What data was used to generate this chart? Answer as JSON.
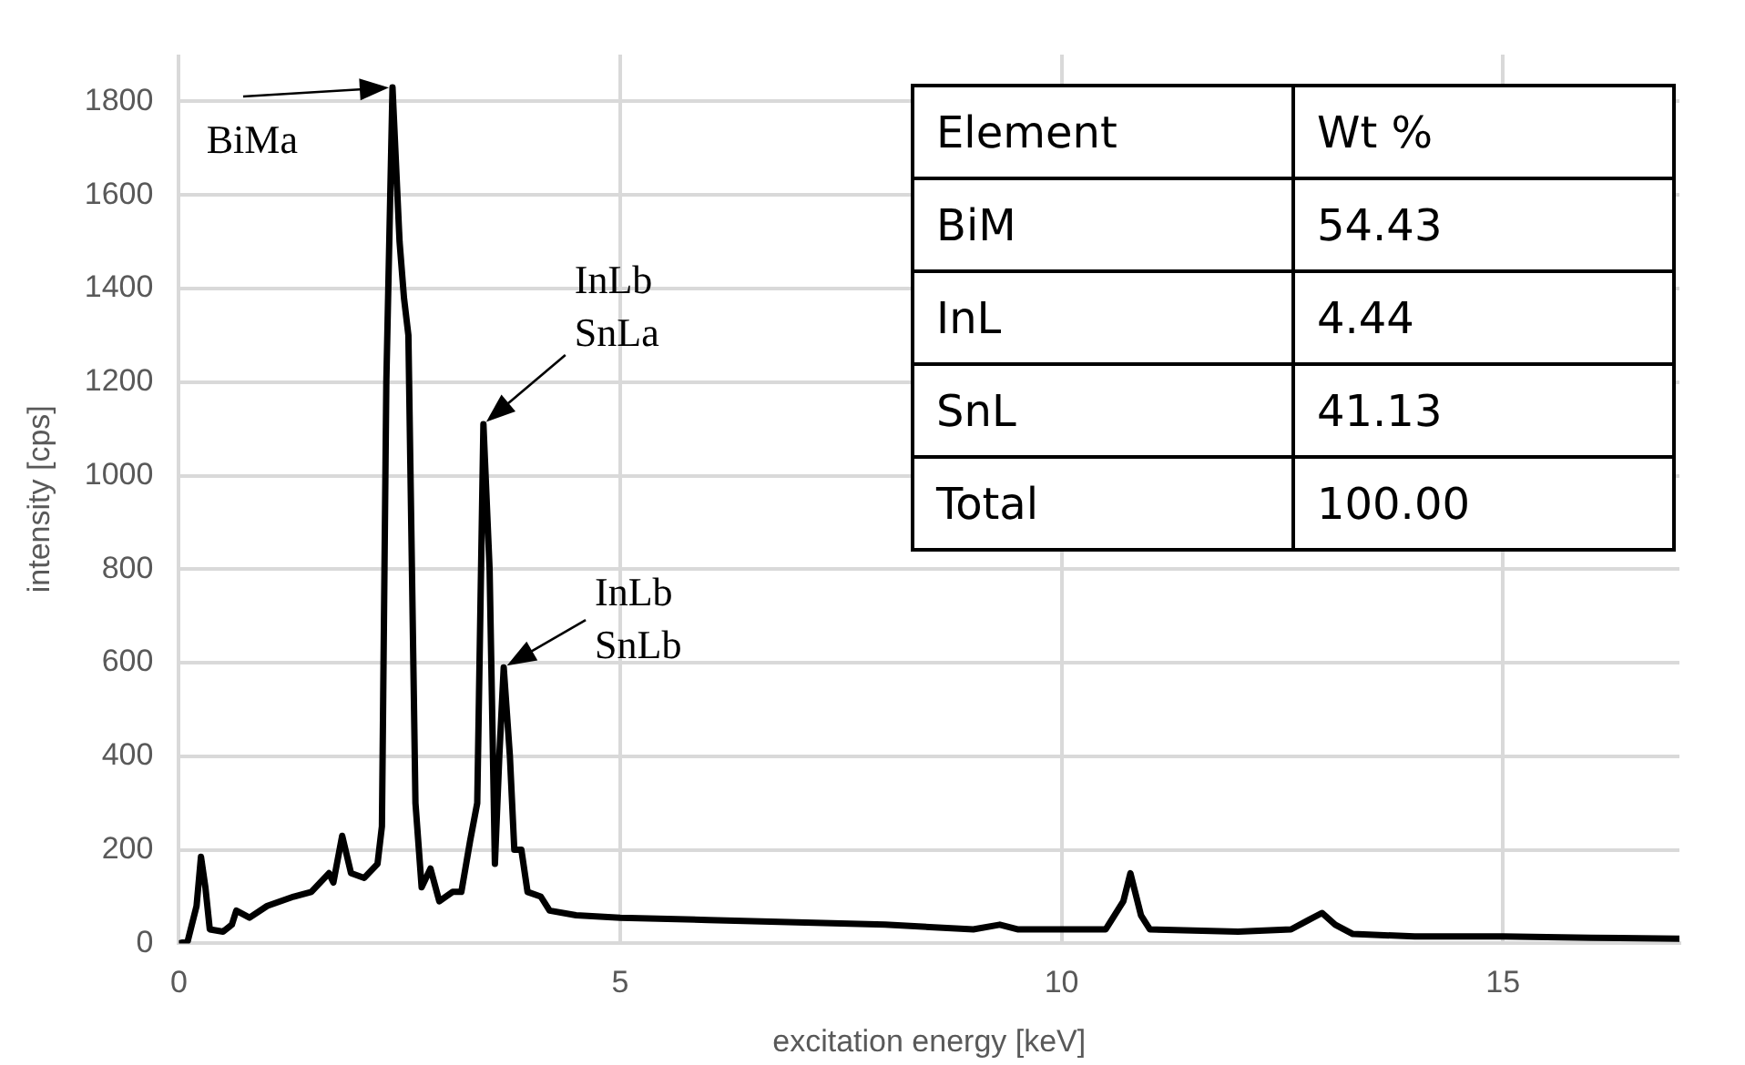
{
  "chart_data": {
    "type": "line",
    "xlabel": "excitation energy [keV]",
    "ylabel": "intensity [cps]",
    "xlim": [
      0,
      17
    ],
    "xticks": [
      0,
      5,
      10,
      15
    ],
    "ylim": [
      0,
      1900
    ],
    "yticks": [
      0,
      200,
      400,
      600,
      800,
      1000,
      1200,
      1400,
      1600,
      1800
    ],
    "grid": true,
    "legend": false,
    "marker": "none",
    "line_style": "solid",
    "series": [
      {
        "color": "#000000",
        "x": [
          0,
          0.1,
          0.2,
          0.25,
          0.3,
          0.35,
          0.5,
          0.6,
          0.65,
          0.8,
          1.0,
          1.3,
          1.5,
          1.7,
          1.75,
          1.85,
          1.95,
          2.1,
          2.25,
          2.3,
          2.35,
          2.42,
          2.5,
          2.55,
          2.6,
          2.68,
          2.75,
          2.85,
          2.95,
          3.1,
          3.2,
          3.3,
          3.38,
          3.45,
          3.52,
          3.58,
          3.63,
          3.68,
          3.75,
          3.8,
          3.88,
          3.95,
          4.1,
          4.2,
          4.5,
          5,
          6,
          7,
          8,
          9,
          9.3,
          9.5,
          10,
          10.5,
          10.7,
          10.78,
          10.9,
          11,
          12,
          12.6,
          12.8,
          12.95,
          13.1,
          13.3,
          14,
          15,
          16,
          17
        ],
        "values": [
          0,
          5,
          80,
          185,
          120,
          30,
          25,
          40,
          70,
          55,
          80,
          100,
          110,
          150,
          130,
          230,
          150,
          140,
          170,
          250,
          1200,
          1830,
          1500,
          1380,
          1300,
          300,
          120,
          160,
          90,
          110,
          110,
          220,
          300,
          1110,
          800,
          170,
          400,
          590,
          400,
          200,
          200,
          110,
          100,
          70,
          60,
          55,
          50,
          45,
          40,
          30,
          40,
          30,
          30,
          30,
          90,
          150,
          60,
          30,
          25,
          30,
          50,
          65,
          40,
          20,
          15,
          15,
          12,
          10
        ]
      }
    ],
    "annotations": [
      {
        "text": "BiMa",
        "x": 2.42,
        "y": 1830
      },
      {
        "text": "InLb\nSnLa",
        "x": 3.45,
        "y": 1110
      },
      {
        "text": "InLb\nSnLb",
        "x": 3.68,
        "y": 590
      },
      "Element",
      "Wt %",
      "BiM",
      "54.43",
      "InL",
      "4.44",
      "SnL",
      "41.13",
      "Total",
      "100.00"
    ]
  }
}
